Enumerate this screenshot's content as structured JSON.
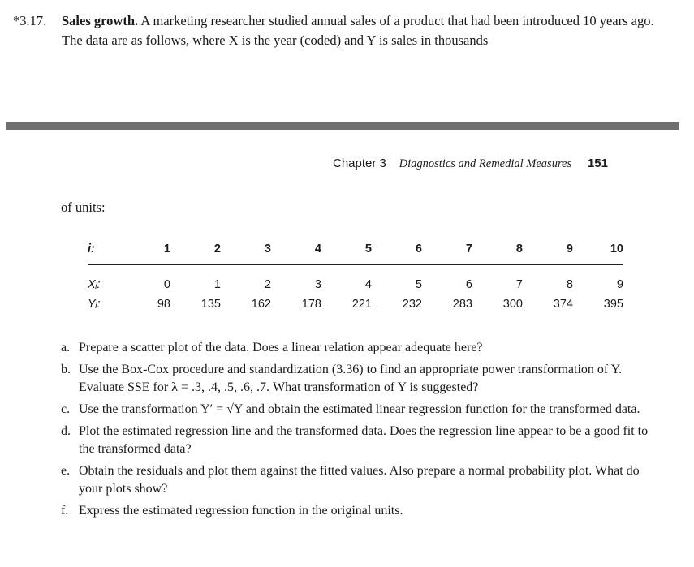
{
  "problem": {
    "number": "*3.17.",
    "title": "Sales growth.",
    "text": "A marketing researcher studied annual sales of a product that had been introduced 10 years ago. The data are as follows, where X is the year (coded) and Y is sales in thousands"
  },
  "header": {
    "chapter": "Chapter 3",
    "section": "Diagnostics and Remedial Measures",
    "page": "151"
  },
  "continuation": "of units:",
  "table": {
    "index_label": "i:",
    "x_label": "Xᵢ:",
    "y_label": "Yᵢ:",
    "i": [
      "1",
      "2",
      "3",
      "4",
      "5",
      "6",
      "7",
      "8",
      "9",
      "10"
    ],
    "x": [
      "0",
      "1",
      "2",
      "3",
      "4",
      "5",
      "6",
      "7",
      "8",
      "9"
    ],
    "y": [
      "98",
      "135",
      "162",
      "178",
      "221",
      "232",
      "283",
      "300",
      "374",
      "395"
    ]
  },
  "items": [
    {
      "label": "a.",
      "text": "Prepare a scatter plot of the data. Does a linear relation appear adequate here?"
    },
    {
      "label": "b.",
      "text": "Use the Box-Cox procedure and standardization (3.36) to find an appropriate power transformation of Y. Evaluate SSE for λ = .3, .4, .5, .6, .7. What transformation of Y is suggested?"
    },
    {
      "label": "c.",
      "text": "Use the transformation Y′ = √Y and obtain the estimated linear regression function for the transformed data."
    },
    {
      "label": "d.",
      "text": "Plot the estimated regression line and the transformed data. Does the regression line appear to be a good fit to the transformed data?"
    },
    {
      "label": "e.",
      "text": "Obtain the residuals and plot them against the fitted values. Also prepare a normal probability plot. What do your plots show?"
    },
    {
      "label": "f.",
      "text": "Express the estimated regression function in the original units."
    }
  ]
}
